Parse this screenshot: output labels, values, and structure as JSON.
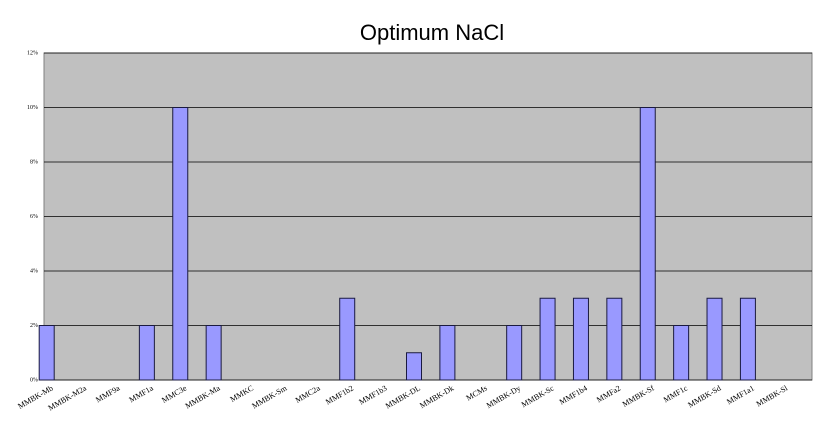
{
  "chart_data": {
    "type": "bar",
    "title": "Optimum NaCl",
    "categories": [
      "MMBK-Mb",
      "MMBK-M2a",
      "MMF9a",
      "MMF1a",
      "MMC3e",
      "MMBK-Ma",
      "MMKC",
      "MMBK-Sm",
      "MMC2a",
      "MMF1b2",
      "MMF1b3",
      "MMBK-DL",
      "MMBK-Dk",
      "MCMs",
      "MMBK-Dy",
      "MMBK-Sc",
      "MMF1b4",
      "MMFa2",
      "MMBK-Sf",
      "MMF1c",
      "MMBK-Sd",
      "MMF1a1",
      "MMBK-Sl"
    ],
    "values": [
      2,
      0,
      0,
      2,
      10,
      2,
      0,
      0,
      0,
      3,
      0,
      1,
      2,
      0,
      2,
      3,
      3,
      3,
      10,
      2,
      3,
      3,
      0
    ],
    "color": "#9999ff",
    "ylim": [
      0,
      12
    ],
    "yticks": [
      {
        "value": 0,
        "label": "0%"
      },
      {
        "value": 2,
        "label": "2%"
      },
      {
        "value": 4,
        "label": "4%"
      },
      {
        "value": 6,
        "label": "6%"
      },
      {
        "value": 8,
        "label": "8%"
      },
      {
        "value": 10,
        "label": "10%"
      },
      {
        "value": 12,
        "label": "12%"
      }
    ],
    "grid": true
  }
}
